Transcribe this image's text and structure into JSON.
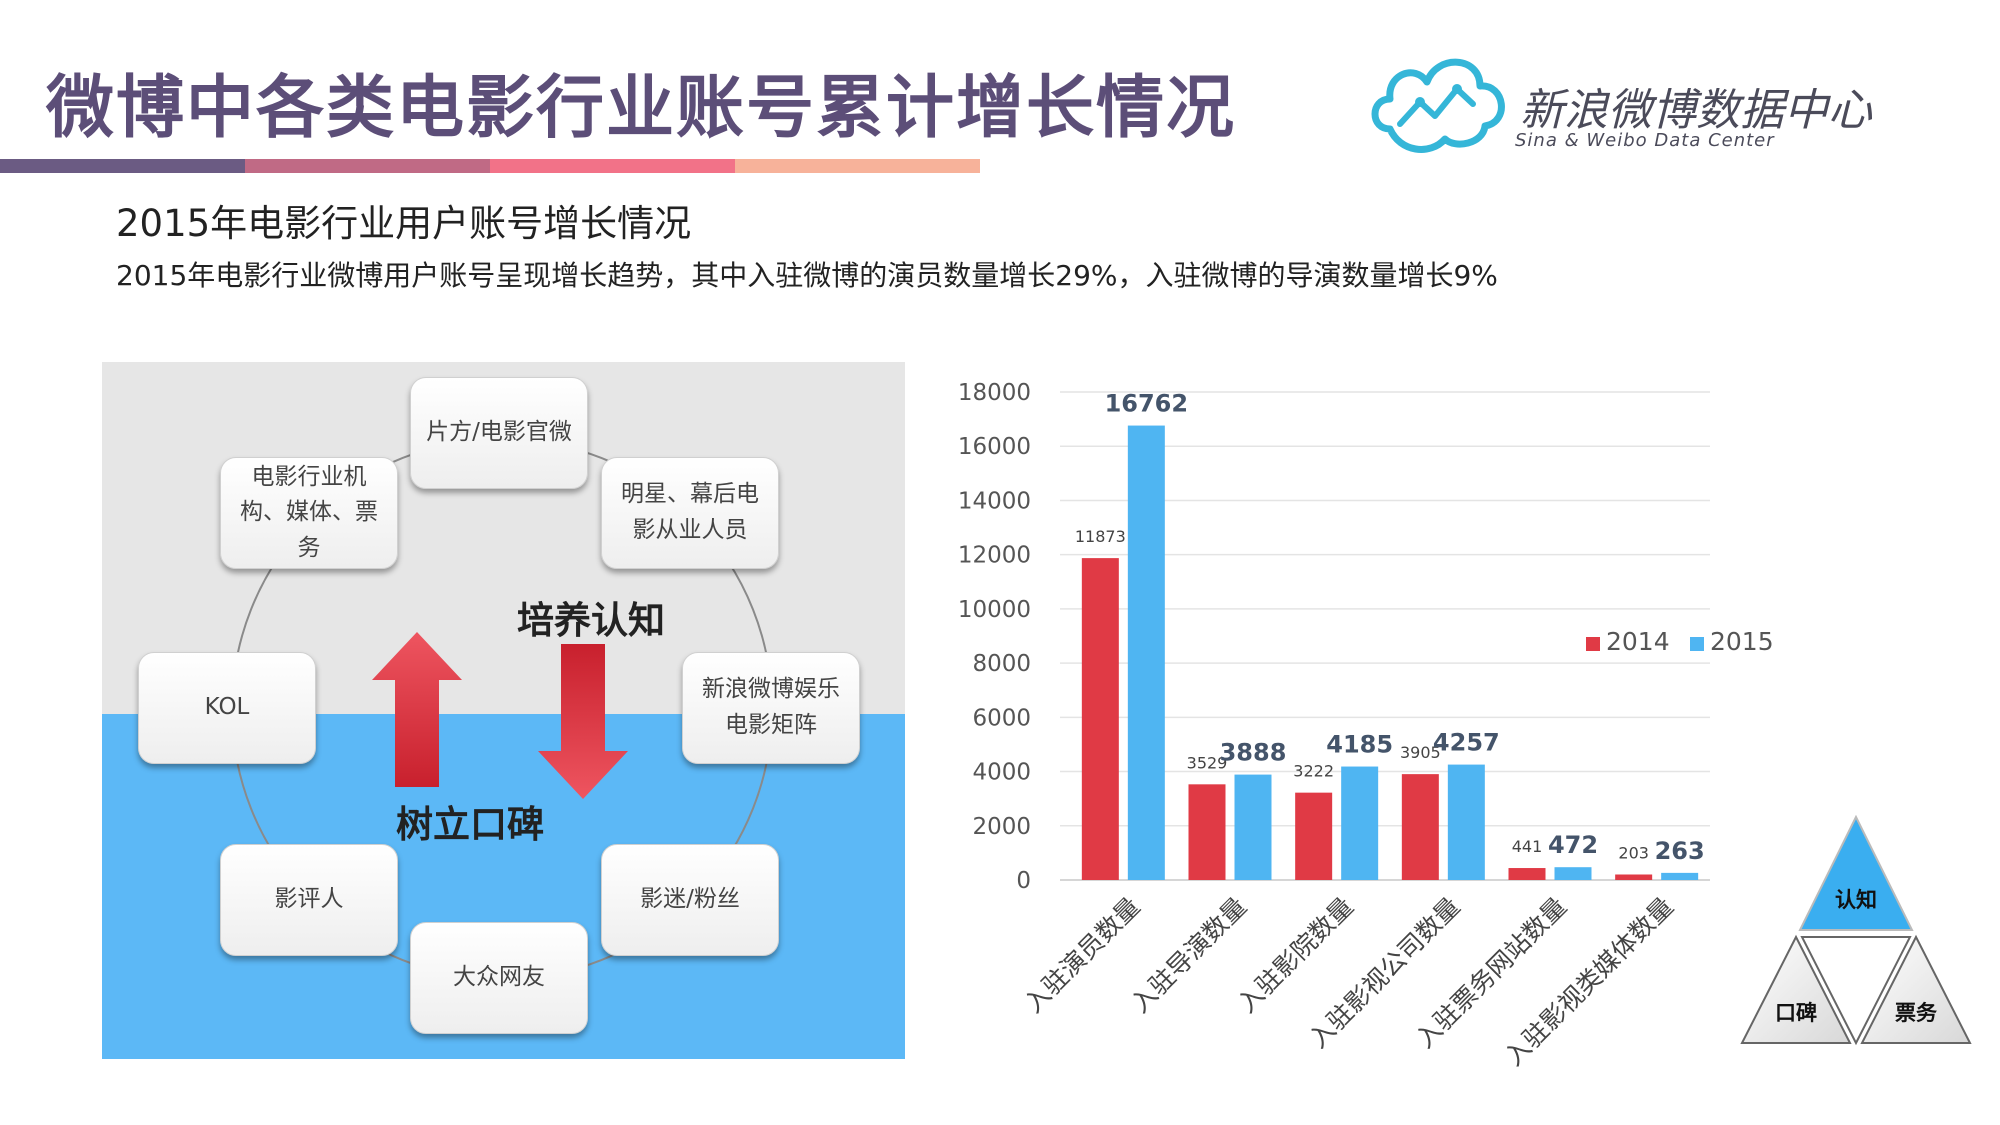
{
  "header": {
    "title": "微博中各类电影行业账号累计增长情况",
    "stripe_colors": [
      "#6b5b83",
      "#c06a85",
      "#f27288",
      "#f7b29a"
    ]
  },
  "logo": {
    "name_cn": "新浪微博数据中心",
    "name_en": "Sina & Weibo Data Center",
    "icon": "cloud-chart-icon",
    "color": "#35b6d8"
  },
  "subtitle": "2015年电影行业用户账号增长情况",
  "description": "2015年电影行业微博用户账号呈现增长趋势，其中入驻微博的演员数量增长29%，入驻微博的导演数量增长9%",
  "diagram": {
    "nodes": [
      "片方/电影官微",
      "明星、幕后电影从业人员",
      "新浪微博娱乐电影矩阵",
      "影迷/粉丝",
      "大众网友",
      "影评人",
      "KOL",
      "电影行业机构、媒体、票务"
    ],
    "label_up": "树立口碑",
    "label_down": "培养认知",
    "top_color": "#e6e6e6",
    "bottom_color": "#5cb8f6",
    "arrow_color": "#e03a45"
  },
  "chart_data": {
    "type": "bar",
    "categories": [
      "入驻演员数量",
      "入驻导演数量",
      "入驻影院数量",
      "入驻影视公司数量",
      "入驻票务网站数量",
      "入驻影视类媒体数量"
    ],
    "series": [
      {
        "name": "2014",
        "values": [
          11873,
          3529,
          3222,
          3905,
          441,
          203
        ],
        "color": "#e03a45"
      },
      {
        "name": "2015",
        "values": [
          16762,
          3888,
          4185,
          4257,
          472,
          263
        ],
        "color": "#4fb5f2"
      }
    ],
    "yticks": [
      "0",
      "2000",
      "4000",
      "6000",
      "8000",
      "10000",
      "12000",
      "14000",
      "16000",
      "18000"
    ],
    "ylim": [
      0,
      18000
    ],
    "grid": true,
    "legend_position": "right"
  },
  "pyramid": {
    "top": "认知",
    "bottom_left": "口碑",
    "bottom_right": "票务",
    "top_color": "#3aaef0"
  }
}
